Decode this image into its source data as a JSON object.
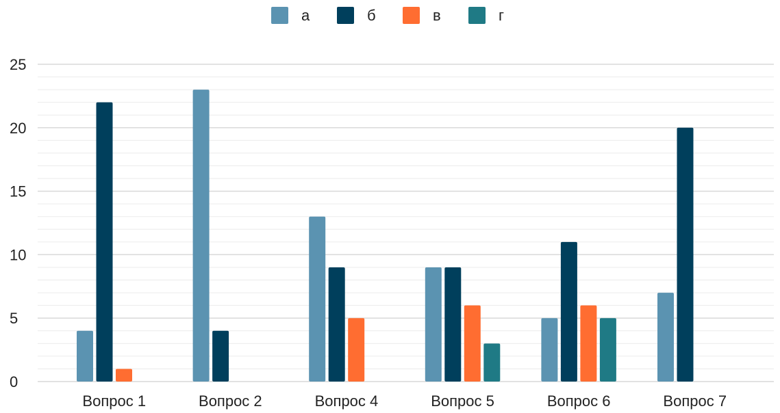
{
  "chart_data": {
    "type": "bar",
    "categories": [
      "Вопрос 1",
      "Вопрос 2",
      "Вопрос 4",
      "Вопрос 5",
      "Вопрос 6",
      "Вопрос 7"
    ],
    "series": [
      {
        "name": "а",
        "color": "#5b93b1",
        "values": [
          4,
          23,
          13,
          9,
          5,
          7
        ]
      },
      {
        "name": "б",
        "color": "#003f5c",
        "values": [
          22,
          4,
          9,
          9,
          11,
          20
        ]
      },
      {
        "name": "в",
        "color": "#ff6d31",
        "values": [
          1,
          0,
          5,
          6,
          6,
          0
        ]
      },
      {
        "name": "г",
        "color": "#1f7a85",
        "values": [
          0,
          0,
          0,
          3,
          5,
          0
        ]
      }
    ],
    "yticks": [
      "0",
      "5",
      "10",
      "15",
      "20",
      "25"
    ],
    "ylim": [
      0,
      25
    ],
    "grid": true,
    "legend_position": "top-center",
    "title": "",
    "xlabel": "",
    "ylabel": ""
  }
}
